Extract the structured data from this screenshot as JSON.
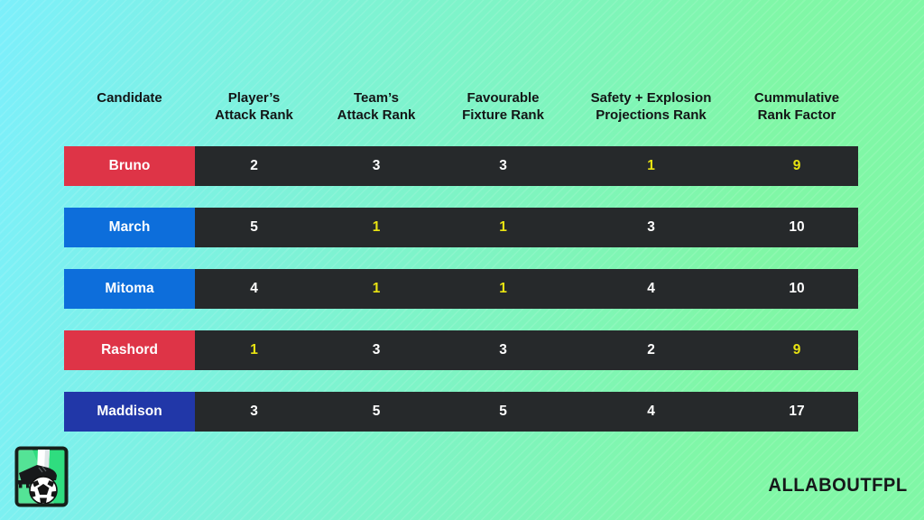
{
  "page": {
    "watermark": "ALLABOUTFPL"
  },
  "colors": {
    "bg_left": "#7ceffb",
    "bg_right": "#80f7a6",
    "row_dark": "#26292b",
    "text_light": "#ffffff",
    "highlight": "#e8e312",
    "header_text": "#131516",
    "red": "#de3447",
    "blue": "#0d6edb",
    "navy": "#2137a8"
  },
  "icons": {
    "logo": "football-boot-and-ball-icon"
  },
  "chart_data": {
    "type": "table",
    "title": "",
    "columns": [
      "Candidate",
      "Player’s\nAttack Rank",
      "Team’s\nAttack Rank",
      "Favourable\nFixture Rank",
      "Safety + Explosion\nProjections Rank",
      "Cummulative\nRank Factor"
    ],
    "rows": [
      {
        "name": "Bruno",
        "color": "red",
        "values": [
          2,
          3,
          3,
          1,
          9
        ],
        "highlights": [
          false,
          false,
          false,
          true,
          true
        ]
      },
      {
        "name": "March",
        "color": "blue",
        "values": [
          5,
          1,
          1,
          3,
          10
        ],
        "highlights": [
          false,
          true,
          true,
          false,
          false
        ]
      },
      {
        "name": "Mitoma",
        "color": "blue",
        "values": [
          4,
          1,
          1,
          4,
          10
        ],
        "highlights": [
          false,
          true,
          true,
          false,
          false
        ]
      },
      {
        "name": "Rashord",
        "color": "red",
        "values": [
          1,
          3,
          3,
          2,
          9
        ],
        "highlights": [
          true,
          false,
          false,
          false,
          true
        ]
      },
      {
        "name": "Maddison",
        "color": "navy",
        "values": [
          3,
          5,
          5,
          4,
          17
        ],
        "highlights": [
          false,
          false,
          false,
          false,
          false
        ]
      }
    ],
    "layout": {
      "grid": false,
      "legend": "none",
      "highlight_style": "rank values shown in yellow, others white on dark bars"
    }
  }
}
